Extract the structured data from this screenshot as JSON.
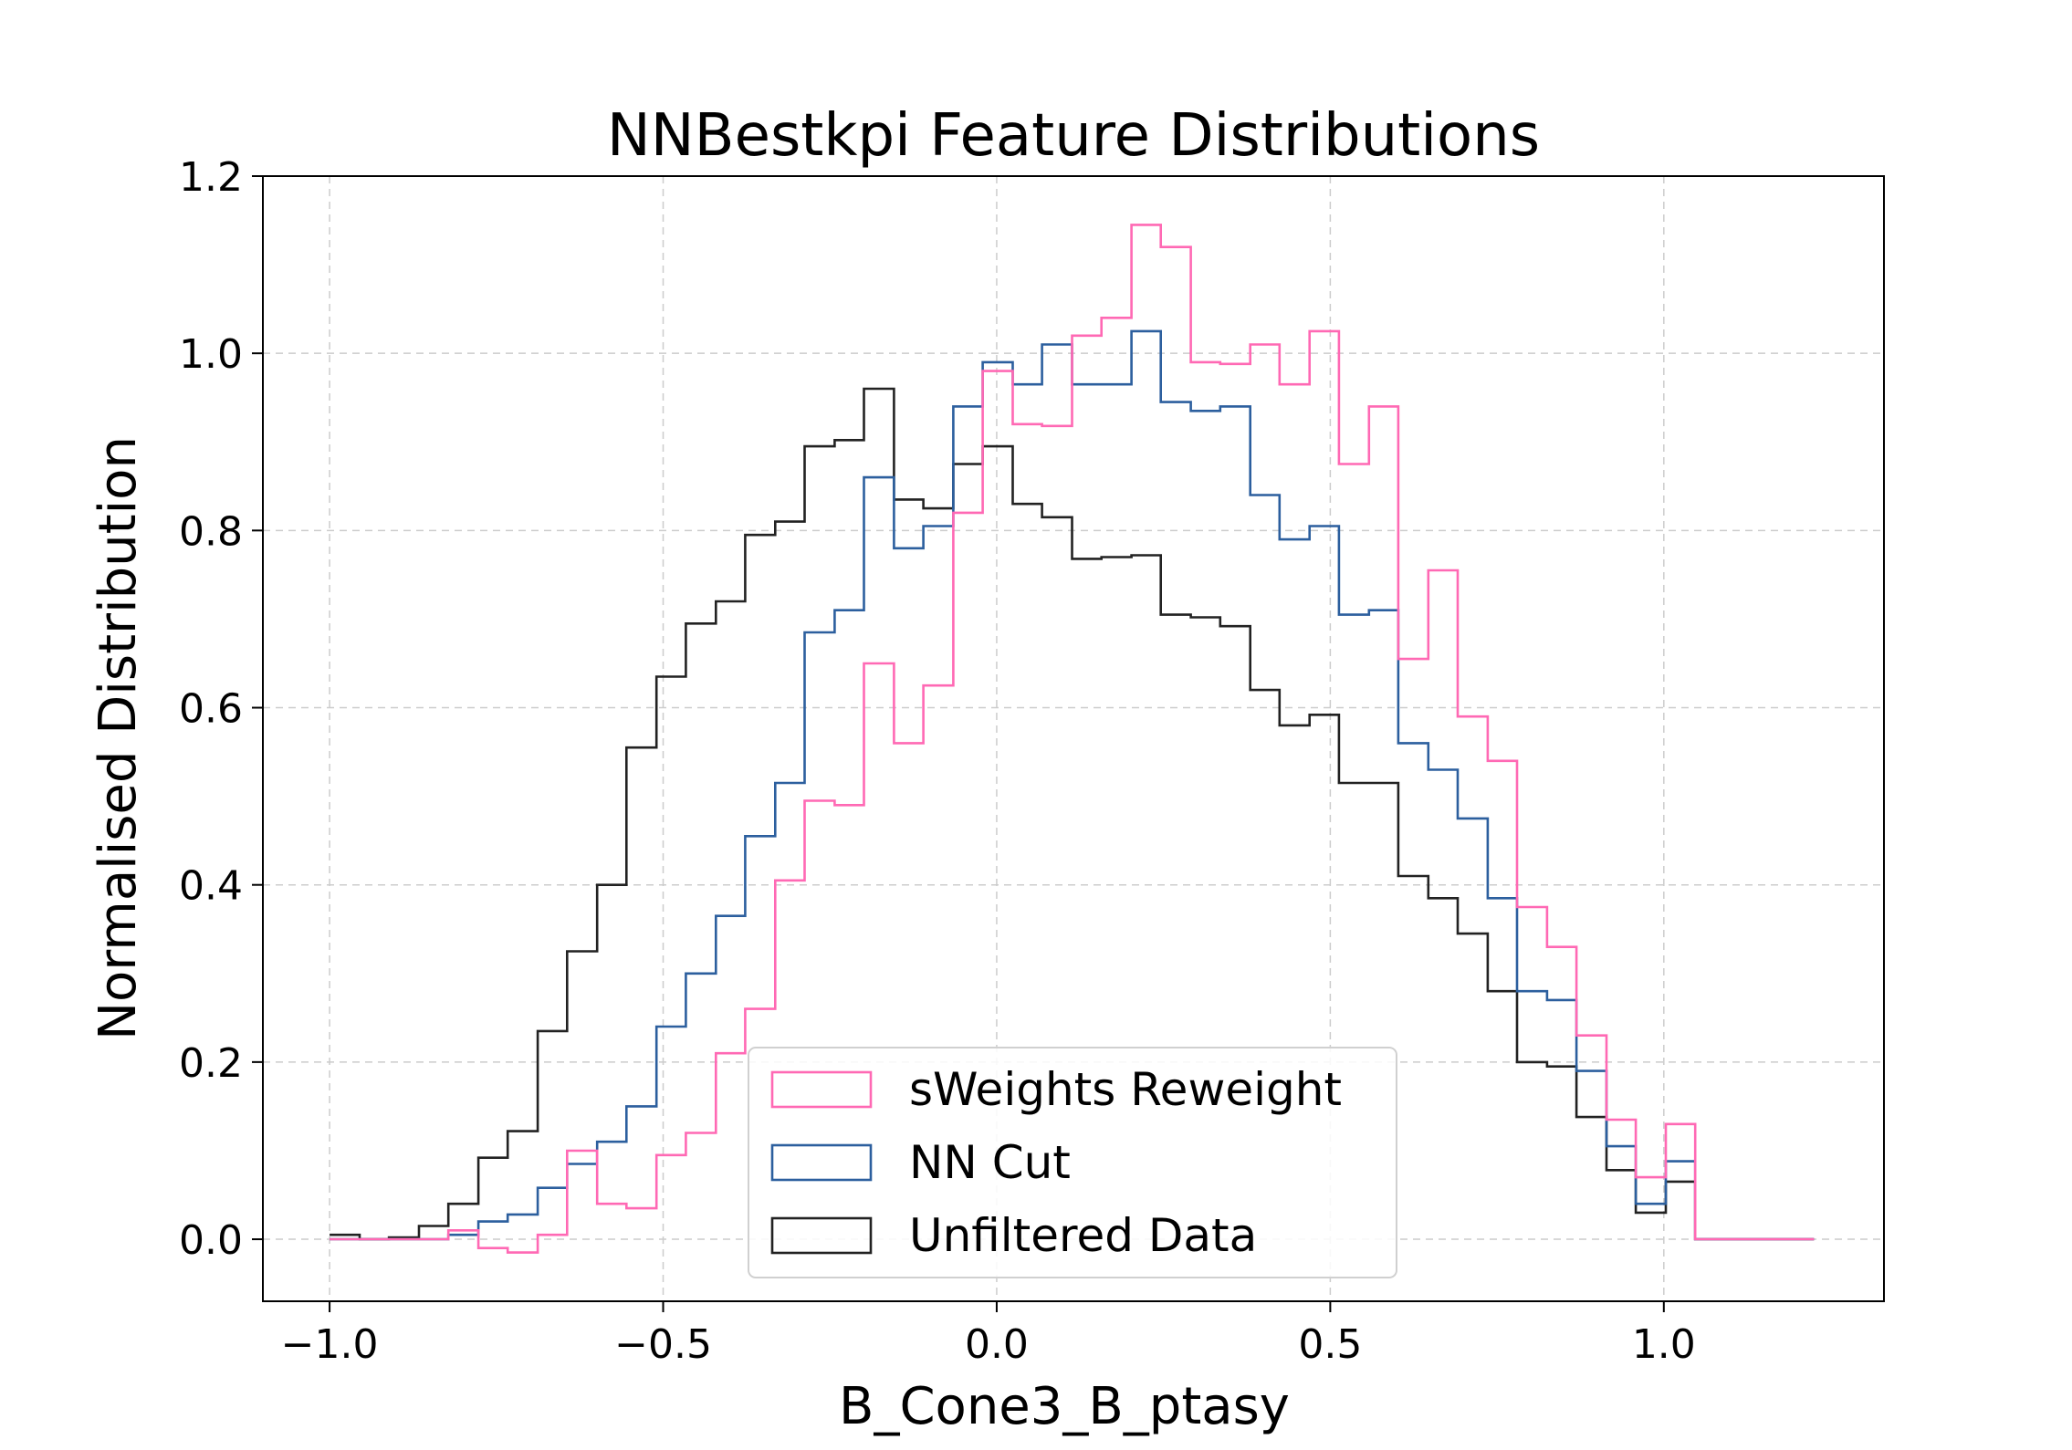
{
  "chart_data": {
    "type": "histogram-step",
    "title": "NNBestkpi Feature Distributions",
    "xlabel": "B_Cone3_B_ptasy",
    "ylabel": "Normalised Distribution",
    "xlim": [
      -1.1,
      1.33
    ],
    "ylim": [
      -0.07,
      1.2
    ],
    "xticks": [
      -1.0,
      -0.5,
      0.0,
      0.5,
      1.0
    ],
    "xtick_labels": [
      "−1.0",
      "−0.5",
      "0.0",
      "0.5",
      "1.0"
    ],
    "yticks": [
      0.0,
      0.2,
      0.4,
      0.6,
      0.8,
      1.0,
      1.2
    ],
    "ytick_labels": [
      "0.0",
      "0.2",
      "0.4",
      "0.6",
      "0.8",
      "1.0",
      "1.2"
    ],
    "grid": true,
    "legend_position": "bottom-center",
    "bin_edges": [
      -1.0,
      -0.955,
      -0.911,
      -0.866,
      -0.822,
      -0.777,
      -0.733,
      -0.688,
      -0.644,
      -0.599,
      -0.555,
      -0.51,
      -0.466,
      -0.421,
      -0.377,
      -0.332,
      -0.288,
      -0.243,
      -0.199,
      -0.154,
      -0.11,
      -0.065,
      -0.021,
      0.024,
      0.068,
      0.113,
      0.157,
      0.202,
      0.246,
      0.291,
      0.335,
      0.38,
      0.424,
      0.469,
      0.513,
      0.558,
      0.602,
      0.647,
      0.691,
      0.736,
      0.78,
      0.825,
      0.869,
      0.914,
      0.958,
      1.003,
      1.047,
      1.092,
      1.136,
      1.181,
      1.225
    ],
    "series": [
      {
        "name": "sWeights Reweight",
        "color": "#ff69b4",
        "values": [
          0.0,
          0.0,
          0.0,
          0.0,
          0.01,
          -0.01,
          -0.015,
          0.005,
          0.1,
          0.04,
          0.035,
          0.095,
          0.12,
          0.21,
          0.26,
          0.405,
          0.495,
          0.49,
          0.65,
          0.56,
          0.625,
          0.82,
          0.98,
          0.92,
          0.918,
          1.02,
          1.04,
          1.145,
          1.12,
          0.99,
          0.988,
          1.01,
          0.965,
          1.025,
          0.875,
          0.94,
          0.655,
          0.755,
          0.59,
          0.54,
          0.375,
          0.33,
          0.23,
          0.135,
          0.07,
          0.13,
          0.0,
          0.0,
          0.0,
          0.0
        ]
      },
      {
        "name": "NN Cut",
        "color": "#2c5f9e",
        "values": [
          0.0,
          0.0,
          0.0,
          0.0,
          0.005,
          0.02,
          0.028,
          0.058,
          0.085,
          0.11,
          0.15,
          0.24,
          0.3,
          0.365,
          0.455,
          0.515,
          0.685,
          0.71,
          0.86,
          0.78,
          0.805,
          0.94,
          0.99,
          0.965,
          1.01,
          0.965,
          0.965,
          1.025,
          0.945,
          0.935,
          0.94,
          0.84,
          0.79,
          0.805,
          0.705,
          0.71,
          0.56,
          0.53,
          0.475,
          0.385,
          0.28,
          0.27,
          0.19,
          0.105,
          0.04,
          0.088,
          0.0,
          0.0,
          0.0,
          0.0
        ]
      },
      {
        "name": "Unfiltered Data",
        "color": "#222222",
        "values": [
          0.005,
          0.0,
          0.002,
          0.015,
          0.04,
          0.092,
          0.122,
          0.235,
          0.325,
          0.4,
          0.555,
          0.635,
          0.695,
          0.72,
          0.795,
          0.81,
          0.895,
          0.902,
          0.96,
          0.835,
          0.825,
          0.875,
          0.895,
          0.83,
          0.815,
          0.768,
          0.77,
          0.772,
          0.705,
          0.702,
          0.692,
          0.62,
          0.58,
          0.592,
          0.515,
          0.515,
          0.41,
          0.385,
          0.345,
          0.28,
          0.2,
          0.195,
          0.138,
          0.078,
          0.03,
          0.065,
          0.0,
          0.0,
          0.0,
          0.0
        ]
      }
    ]
  }
}
